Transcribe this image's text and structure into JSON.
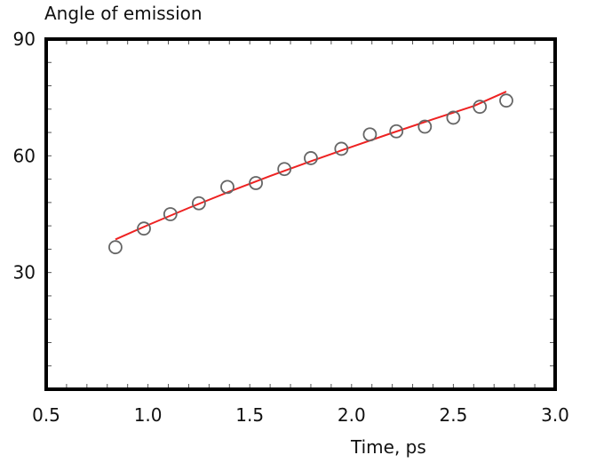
{
  "chart_data": {
    "type": "scatter",
    "title": "",
    "ylabel": "Angle of emission",
    "xlabel": "Time, ps",
    "xlim": [
      0.5,
      3.0
    ],
    "ylim": [
      0,
      90
    ],
    "x_ticks": [
      0.5,
      1.0,
      1.5,
      2.0,
      2.5,
      3.0
    ],
    "x_tick_labels": [
      "0.5",
      "1.0",
      "1.5",
      "2.0",
      "2.5",
      "3.0"
    ],
    "y_ticks": [
      30,
      60,
      90
    ],
    "y_tick_labels": [
      "30",
      "60",
      "90"
    ],
    "grid": false,
    "series": [
      {
        "kind": "markers",
        "marker": "open-circle",
        "color": "#666666",
        "x": [
          0.84,
          0.98,
          1.11,
          1.25,
          1.39,
          1.53,
          1.67,
          1.8,
          1.95,
          2.09,
          2.22,
          2.36,
          2.5,
          2.63,
          2.76
        ],
        "y": [
          36.5,
          41.3,
          45.0,
          47.8,
          52.0,
          53.0,
          56.6,
          59.4,
          61.8,
          65.5,
          66.3,
          67.5,
          69.8,
          72.6,
          74.2
        ]
      },
      {
        "kind": "line",
        "color": "#ee2222",
        "x": [
          0.84,
          1.0,
          1.2,
          1.4,
          1.6,
          1.8,
          2.0,
          2.2,
          2.4,
          2.6,
          2.76
        ],
        "y": [
          38.5,
          42.2,
          46.6,
          50.8,
          54.8,
          58.6,
          62.3,
          65.9,
          69.4,
          72.8,
          76.5
        ]
      }
    ]
  }
}
